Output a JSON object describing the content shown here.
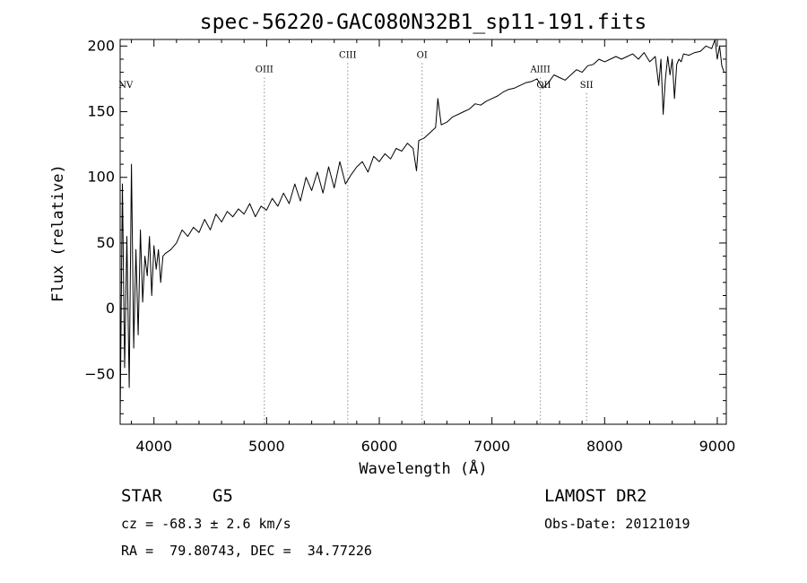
{
  "chart_data": {
    "type": "line",
    "title": "spec-56220-GAC080N32B1_sp11-191.fits",
    "xlabel": "Wavelength (Å)",
    "ylabel": "Flux (relative)",
    "xlim": [
      3700,
      9080
    ],
    "ylim": [
      -88,
      205
    ],
    "xticks": [
      4000,
      5000,
      6000,
      7000,
      8000,
      9000
    ],
    "yticks": [
      -50,
      0,
      50,
      100,
      150,
      200
    ],
    "grid": false,
    "series": [
      {
        "x": [
          3700,
          3720,
          3740,
          3760,
          3780,
          3800,
          3820,
          3840,
          3860,
          3880,
          3900,
          3920,
          3940,
          3960,
          3980,
          4000,
          4020,
          4040,
          4060,
          4080,
          4100,
          4150,
          4200,
          4250,
          4300,
          4350,
          4400,
          4450,
          4500,
          4550,
          4600,
          4650,
          4700,
          4750,
          4800,
          4850,
          4900,
          4950,
          5000,
          5050,
          5100,
          5150,
          5200,
          5250,
          5300,
          5350,
          5400,
          5450,
          5500,
          5550,
          5600,
          5650,
          5700,
          5750,
          5800,
          5850,
          5900,
          5950,
          6000,
          6050,
          6100,
          6150,
          6200,
          6250,
          6300,
          6330,
          6350,
          6400,
          6450,
          6500,
          6520,
          6550,
          6600,
          6650,
          6700,
          6750,
          6800,
          6850,
          6900,
          6950,
          7000,
          7050,
          7100,
          7150,
          7200,
          7250,
          7300,
          7350,
          7400,
          7450,
          7500,
          7550,
          7600,
          7650,
          7700,
          7750,
          7800,
          7850,
          7900,
          7950,
          8000,
          8050,
          8100,
          8150,
          8200,
          8250,
          8300,
          8350,
          8400,
          8450,
          8480,
          8500,
          8520,
          8540,
          8560,
          8580,
          8600,
          8620,
          8640,
          8660,
          8680,
          8700,
          8750,
          8800,
          8850,
          8900,
          8950,
          8980,
          9000,
          9020,
          9040,
          9060
        ],
        "y": [
          -85,
          95,
          -45,
          55,
          -60,
          110,
          -30,
          45,
          -20,
          60,
          5,
          40,
          25,
          55,
          10,
          48,
          30,
          45,
          20,
          40,
          42,
          45,
          50,
          60,
          55,
          62,
          58,
          68,
          60,
          72,
          66,
          74,
          70,
          76,
          72,
          80,
          70,
          78,
          75,
          84,
          78,
          88,
          80,
          95,
          82,
          100,
          90,
          104,
          88,
          108,
          92,
          112,
          95,
          102,
          108,
          112,
          104,
          116,
          112,
          118,
          114,
          122,
          120,
          126,
          122,
          105,
          128,
          130,
          134,
          138,
          160,
          140,
          142,
          146,
          148,
          150,
          152,
          156,
          155,
          158,
          160,
          162,
          165,
          167,
          168,
          170,
          172,
          173,
          175,
          168,
          172,
          178,
          176,
          174,
          178,
          182,
          180,
          185,
          186,
          190,
          188,
          190,
          192,
          190,
          192,
          194,
          190,
          195,
          188,
          192,
          170,
          190,
          148,
          175,
          192,
          178,
          190,
          160,
          186,
          190,
          188,
          194,
          193,
          195,
          196,
          200,
          198,
          205,
          190,
          200,
          185,
          180
        ]
      }
    ],
    "lines": [
      {
        "name": "NV",
        "x": 3750,
        "label_y": 168,
        "dotted": false
      },
      {
        "name": "OIII",
        "x": 4980,
        "label_y": 180,
        "dotted": true
      },
      {
        "name": "CIII",
        "x": 5720,
        "label_y": 191,
        "dotted": true
      },
      {
        "name": "OI",
        "x": 6380,
        "label_y": 191,
        "dotted": true
      },
      {
        "name": "AlIII",
        "x": 7430,
        "label_y": 180,
        "dotted": true
      },
      {
        "name": "OII",
        "x": 7460,
        "label_y": 168,
        "dotted": false
      },
      {
        "name": "SII",
        "x": 7840,
        "label_y": 168,
        "dotted": true
      }
    ]
  },
  "info": {
    "object_class": "STAR",
    "subclass": "G5",
    "redshift": "cz = -68.3 ± 2.6 km/s",
    "coordinates": "RA =  79.80743, DEC =  34.77226",
    "survey": "LAMOST DR2",
    "obs_date": "Obs-Date: 20121019"
  },
  "colors": {
    "line": "#000000",
    "marker_lines": "#555555",
    "background": "#ffffff"
  }
}
